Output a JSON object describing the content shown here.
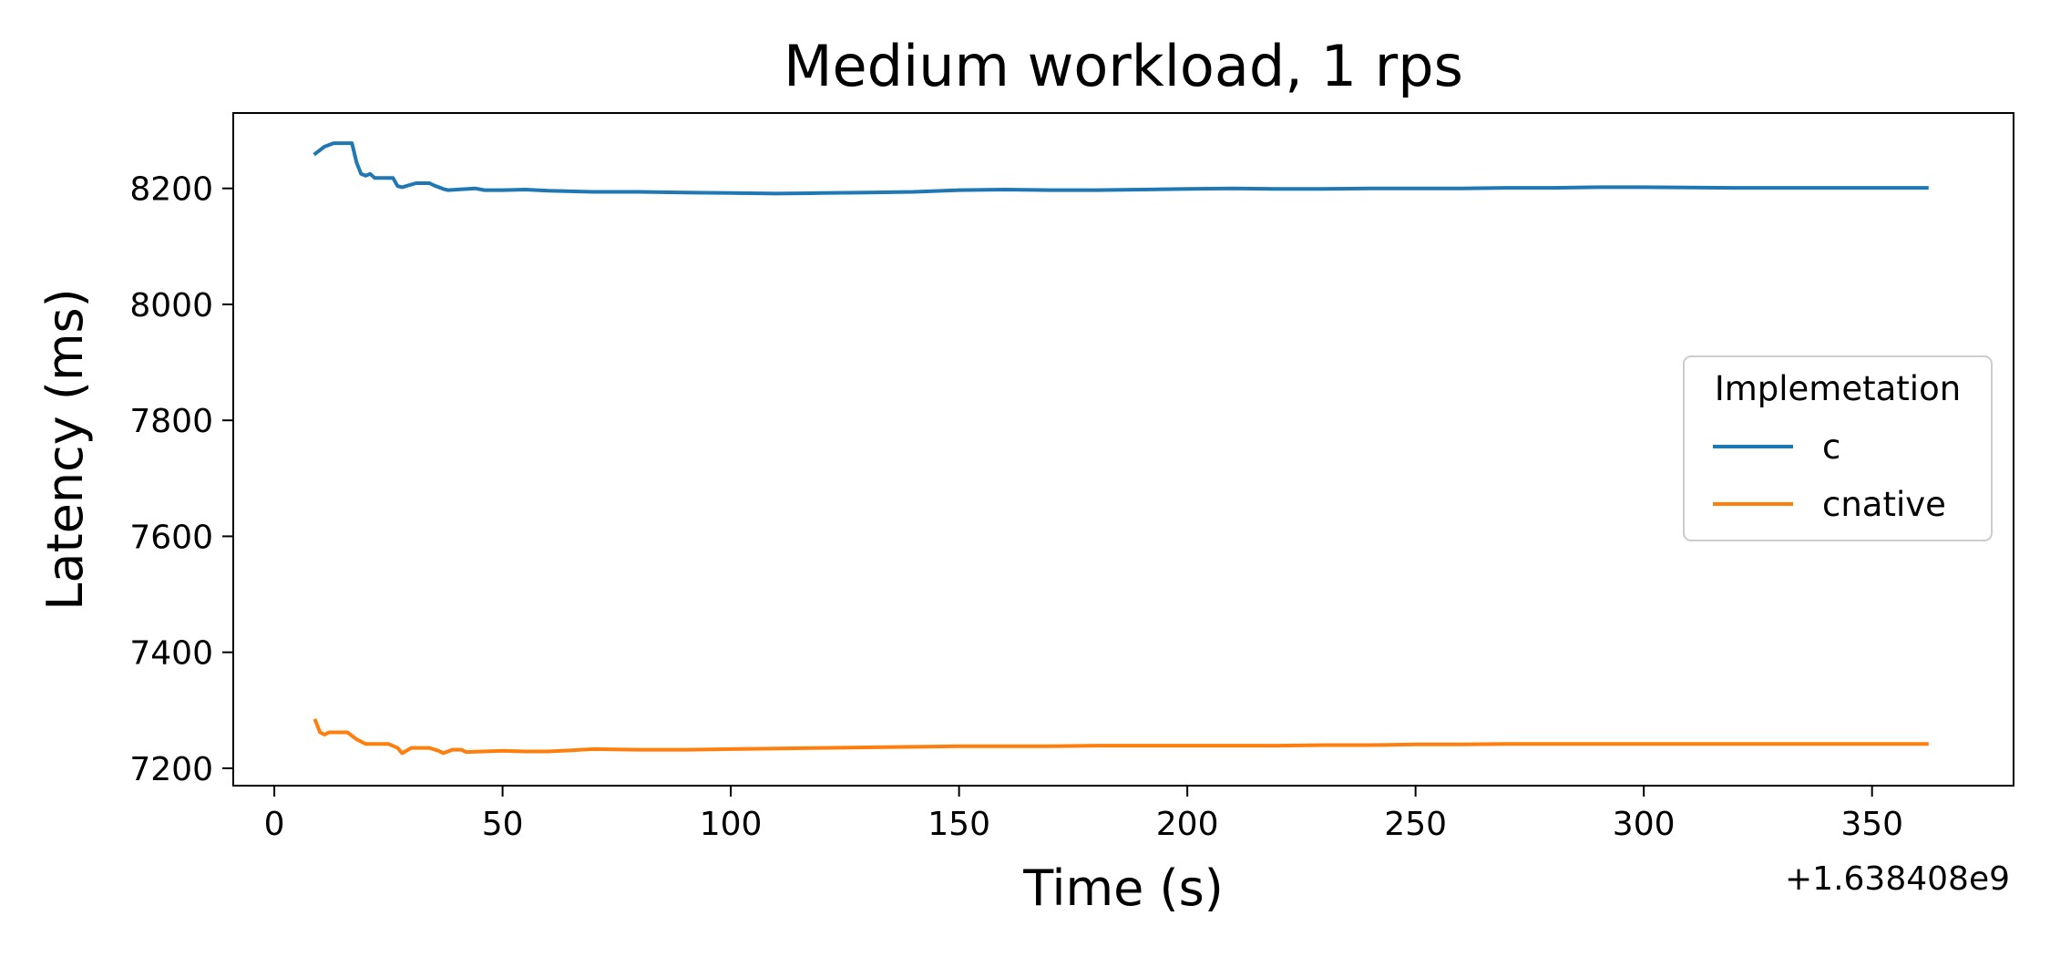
{
  "chart_data": {
    "type": "line",
    "title": "Medium workload, 1 rps",
    "xlabel": "Time (s)",
    "ylabel": "Latency (ms)",
    "x_offset_label": "+1.638408e9",
    "xlim": [
      -9,
      381
    ],
    "ylim": [
      7170,
      8330
    ],
    "xticks": [
      0,
      50,
      100,
      150,
      200,
      250,
      300,
      350
    ],
    "yticks": [
      7200,
      7400,
      7600,
      7800,
      8000,
      8200
    ],
    "grid": false,
    "legend": {
      "title": "Implemetation",
      "placement": "center-right"
    },
    "series": [
      {
        "name": "c",
        "color": "#1f77b4",
        "points": [
          [
            9,
            8260
          ],
          [
            11,
            8272
          ],
          [
            13,
            8278
          ],
          [
            17,
            8278
          ],
          [
            18,
            8245
          ],
          [
            19,
            8225
          ],
          [
            20,
            8222
          ],
          [
            21,
            8225
          ],
          [
            22,
            8218
          ],
          [
            26,
            8218
          ],
          [
            27,
            8204
          ],
          [
            28,
            8202
          ],
          [
            31,
            8209
          ],
          [
            34,
            8209
          ],
          [
            35,
            8205
          ],
          [
            37,
            8199
          ],
          [
            38,
            8197
          ],
          [
            40,
            8198
          ],
          [
            44,
            8200
          ],
          [
            46,
            8197
          ],
          [
            50,
            8197
          ],
          [
            55,
            8198
          ],
          [
            60,
            8196
          ],
          [
            65,
            8195
          ],
          [
            70,
            8194
          ],
          [
            80,
            8194
          ],
          [
            90,
            8193
          ],
          [
            100,
            8192
          ],
          [
            110,
            8191
          ],
          [
            120,
            8192
          ],
          [
            130,
            8193
          ],
          [
            140,
            8194
          ],
          [
            150,
            8197
          ],
          [
            160,
            8198
          ],
          [
            170,
            8197
          ],
          [
            180,
            8197
          ],
          [
            190,
            8198
          ],
          [
            200,
            8199
          ],
          [
            210,
            8200
          ],
          [
            220,
            8199
          ],
          [
            230,
            8199
          ],
          [
            240,
            8200
          ],
          [
            250,
            8200
          ],
          [
            260,
            8200
          ],
          [
            270,
            8201
          ],
          [
            280,
            8201
          ],
          [
            290,
            8202
          ],
          [
            300,
            8202
          ],
          [
            320,
            8201
          ],
          [
            340,
            8201
          ],
          [
            362,
            8201
          ]
        ]
      },
      {
        "name": "cnative",
        "color": "#ff7f0e",
        "points": [
          [
            9,
            7282
          ],
          [
            10,
            7262
          ],
          [
            11,
            7258
          ],
          [
            12,
            7262
          ],
          [
            16,
            7262
          ],
          [
            18,
            7250
          ],
          [
            20,
            7242
          ],
          [
            25,
            7242
          ],
          [
            27,
            7235
          ],
          [
            28,
            7226
          ],
          [
            30,
            7235
          ],
          [
            34,
            7235
          ],
          [
            36,
            7230
          ],
          [
            37,
            7226
          ],
          [
            39,
            7232
          ],
          [
            41,
            7232
          ],
          [
            42,
            7228
          ],
          [
            50,
            7230
          ],
          [
            55,
            7229
          ],
          [
            60,
            7229
          ],
          [
            65,
            7231
          ],
          [
            70,
            7233
          ],
          [
            80,
            7232
          ],
          [
            90,
            7232
          ],
          [
            100,
            7233
          ],
          [
            110,
            7234
          ],
          [
            120,
            7235
          ],
          [
            130,
            7236
          ],
          [
            140,
            7237
          ],
          [
            150,
            7238
          ],
          [
            160,
            7238
          ],
          [
            170,
            7238
          ],
          [
            180,
            7239
          ],
          [
            190,
            7239
          ],
          [
            200,
            7239
          ],
          [
            210,
            7239
          ],
          [
            220,
            7239
          ],
          [
            230,
            7240
          ],
          [
            240,
            7240
          ],
          [
            250,
            7241
          ],
          [
            260,
            7241
          ],
          [
            270,
            7242
          ],
          [
            280,
            7242
          ],
          [
            290,
            7242
          ],
          [
            300,
            7242
          ],
          [
            320,
            7242
          ],
          [
            340,
            7242
          ],
          [
            362,
            7242
          ]
        ]
      }
    ]
  }
}
